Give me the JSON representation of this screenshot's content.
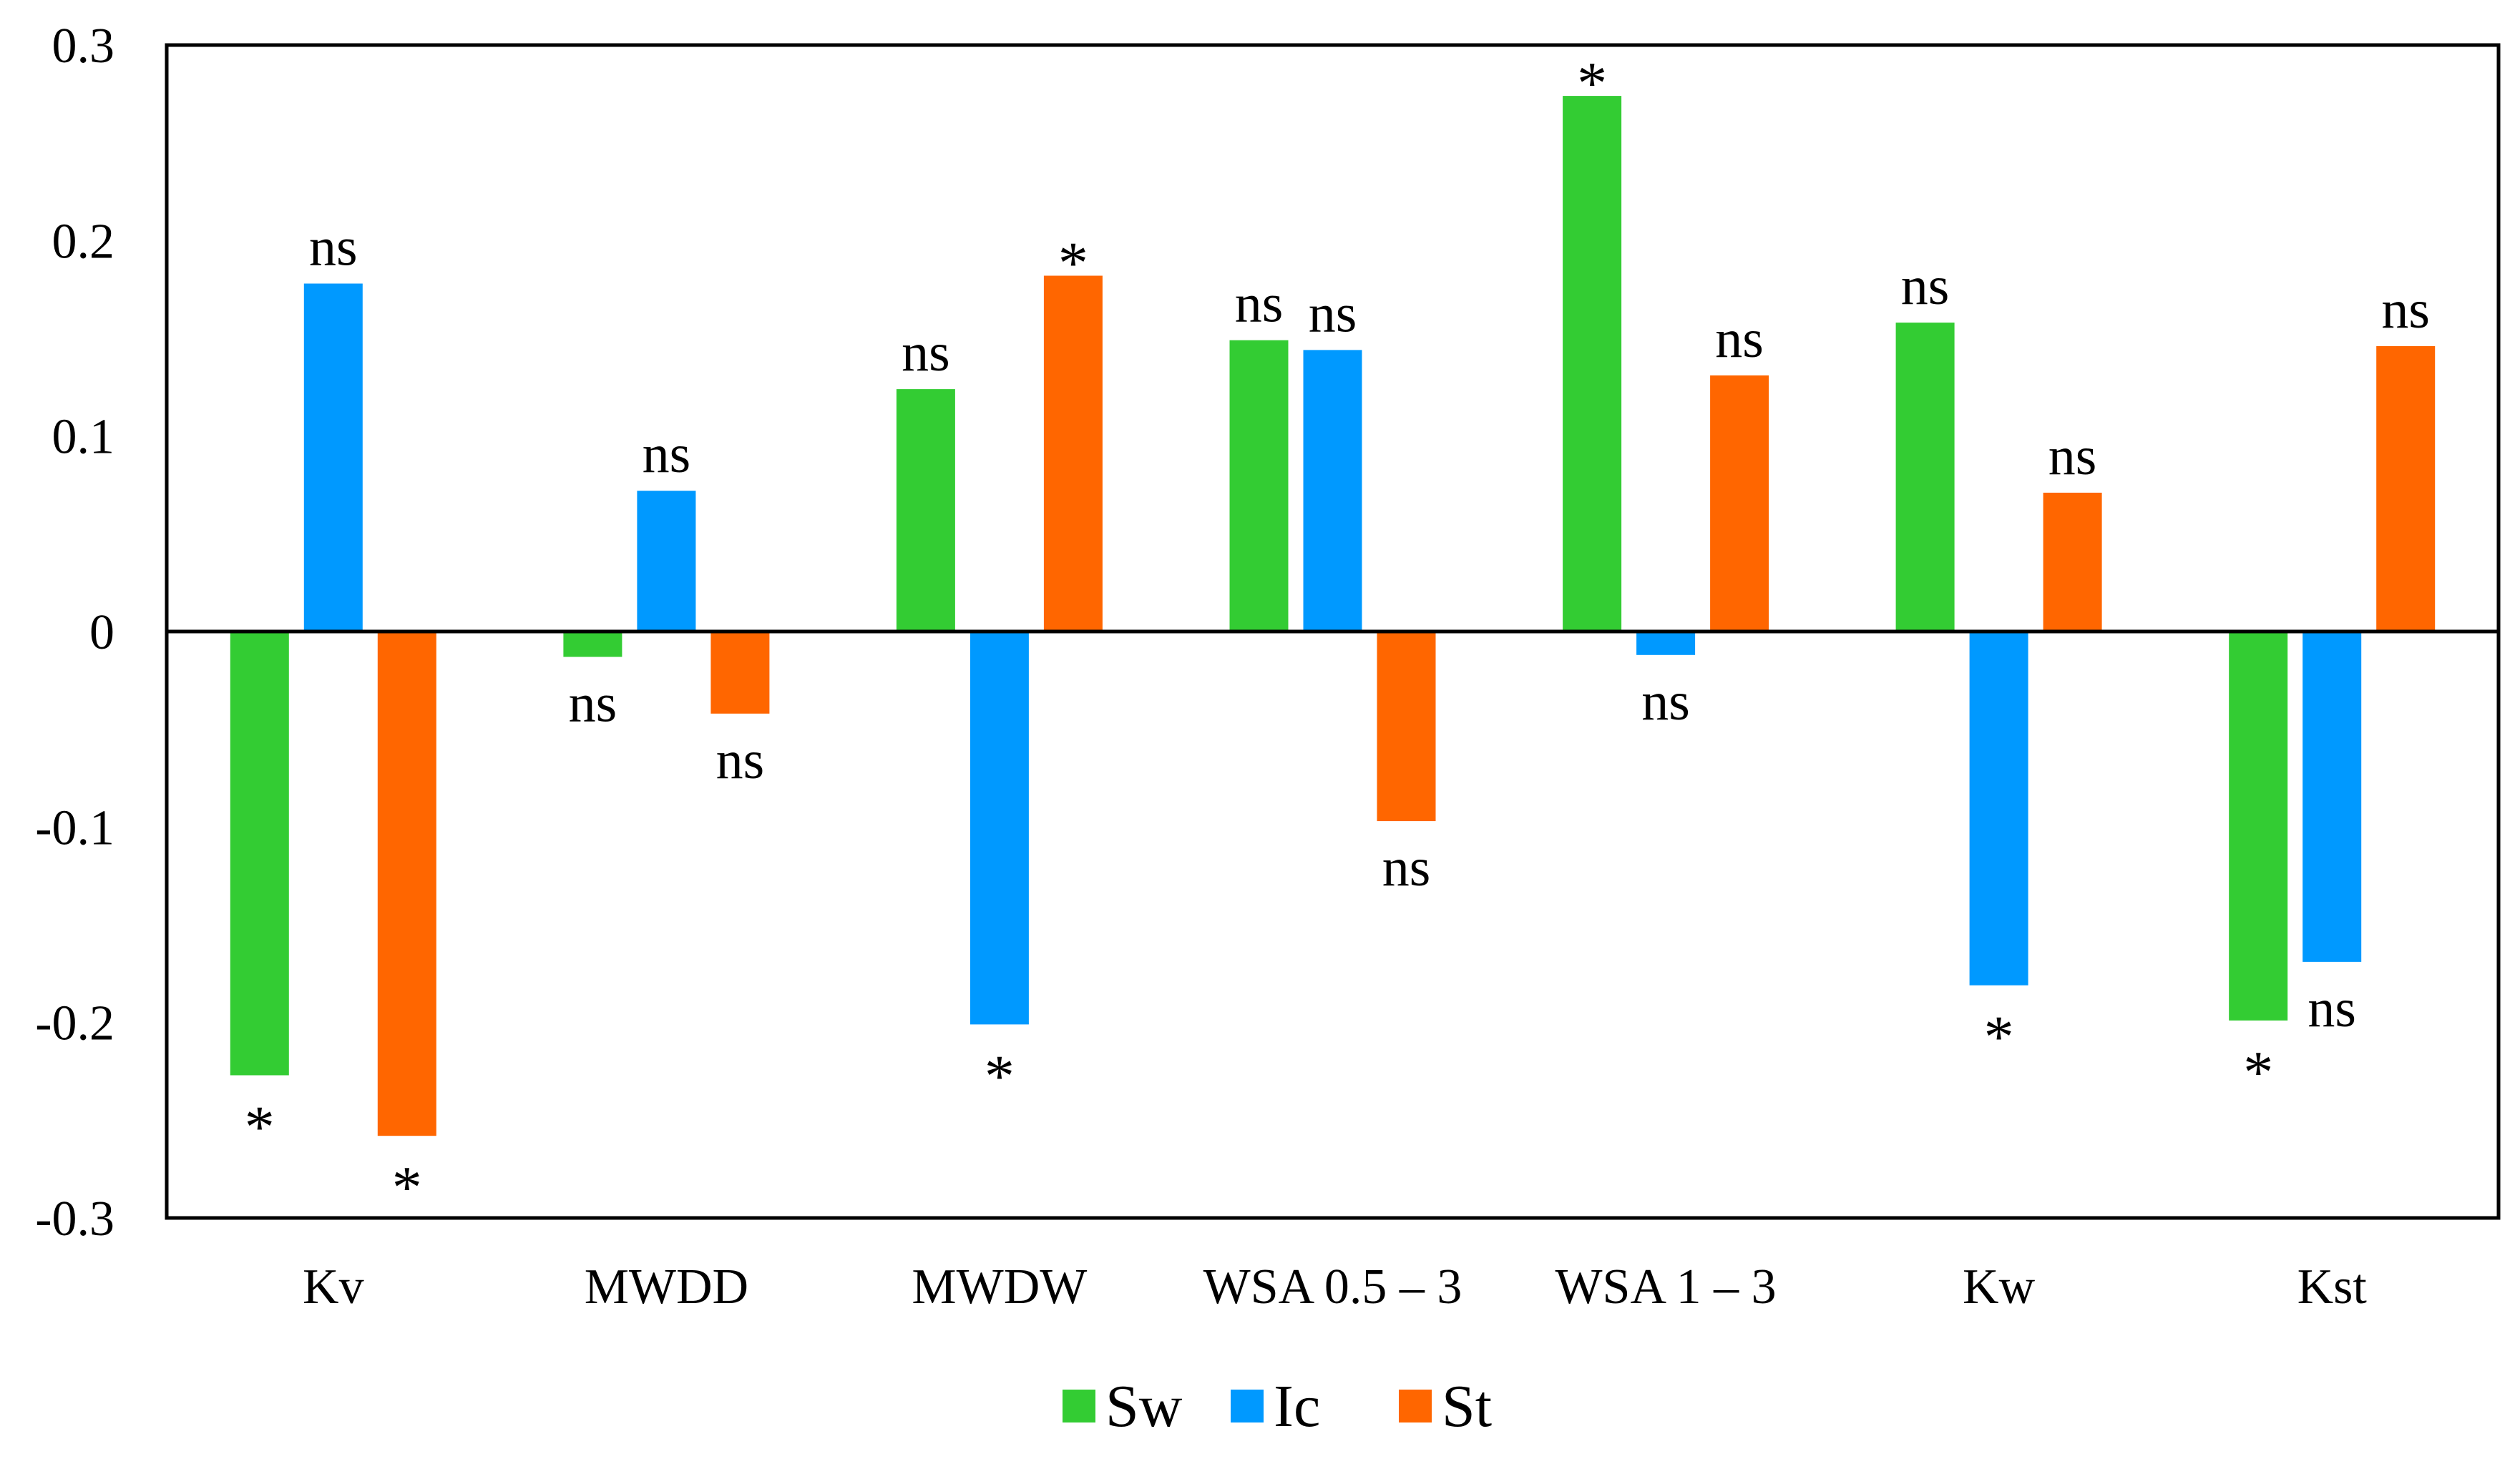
{
  "chart_data": {
    "type": "bar",
    "title": "",
    "xlabel": "",
    "ylabel": "",
    "ylim": [
      -0.3,
      0.3
    ],
    "yticks": [
      0.3,
      0.2,
      0.1,
      0,
      -0.1,
      -0.2,
      -0.3
    ],
    "ytick_labels": [
      "0.3",
      "0.2",
      "0.1",
      "0",
      "-0.1",
      "-0.2",
      "-0.3"
    ],
    "grid": false,
    "legend_position": "bottom-center",
    "categories": [
      "Kv",
      "MWDD",
      "MWDW",
      "WSA 0.5 – 3",
      "WSA 1 – 3",
      "Kw",
      "Kst"
    ],
    "series": [
      {
        "name": "Sw",
        "color": "#33cc33",
        "values": [
          -0.227,
          -0.013,
          0.124,
          0.149,
          0.274,
          0.158,
          -0.199
        ],
        "labels": [
          "*",
          "ns",
          "ns",
          "ns",
          "*",
          "ns",
          "*"
        ]
      },
      {
        "name": "Ic",
        "color": "#0099ff",
        "values": [
          0.178,
          0.072,
          -0.201,
          0.144,
          -0.012,
          -0.181,
          -0.169
        ],
        "labels": [
          "ns",
          "ns",
          "*",
          "ns",
          "ns",
          "*",
          "ns"
        ]
      },
      {
        "name": "St",
        "color": "#ff6600",
        "values": [
          -0.258,
          -0.042,
          0.182,
          -0.097,
          0.131,
          0.071,
          0.146
        ],
        "labels": [
          "*",
          "ns",
          "*",
          "ns",
          "ns",
          "ns",
          "ns"
        ]
      }
    ]
  }
}
